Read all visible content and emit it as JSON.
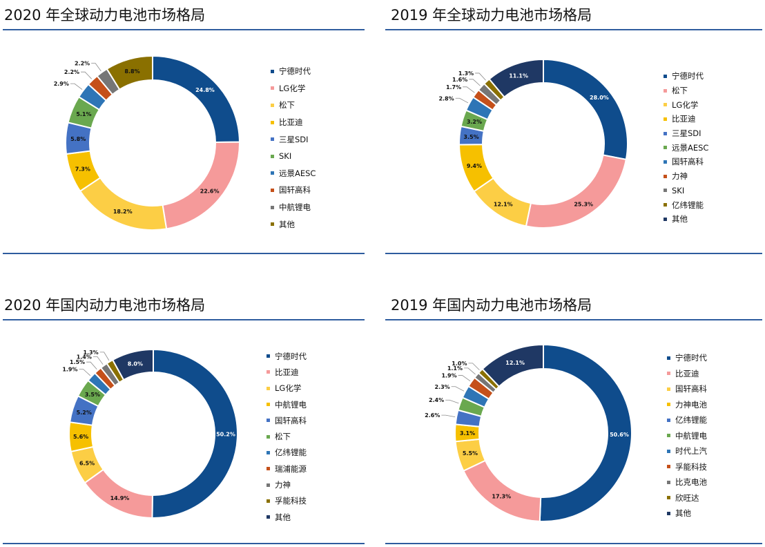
{
  "chart_data": [
    {
      "type": "pie",
      "title": "2020 年全球动力电池市场格局",
      "series": [
        {
          "name": "宁德时代",
          "value": 24.8,
          "label": "24.8%",
          "color": "#0f4c8c"
        },
        {
          "name": "LG化学",
          "value": 22.6,
          "label": "22.6%",
          "color": "#f59a9a"
        },
        {
          "name": "松下",
          "value": 18.2,
          "label": "18.2%",
          "color": "#fcce45"
        },
        {
          "name": "比亚迪",
          "value": 7.3,
          "label": "7.3%",
          "color": "#f6c000"
        },
        {
          "name": "三星SDI",
          "value": 5.8,
          "label": "5.8%",
          "color": "#4472c4"
        },
        {
          "name": "SKI",
          "value": 5.1,
          "label": "5.1%",
          "color": "#6aa84f"
        },
        {
          "name": "远景AESC",
          "value": 2.9,
          "label": "2.9%",
          "color": "#2e75b6"
        },
        {
          "name": "国轩高科",
          "value": 2.2,
          "label": "2.2%",
          "color": "#c5501a"
        },
        {
          "name": "中航锂电",
          "value": 2.2,
          "label": "2.2%",
          "color": "#767676"
        },
        {
          "name": "其他",
          "value": 8.8,
          "label": "8.8%",
          "color": "#8a7000"
        }
      ]
    },
    {
      "type": "pie",
      "title": "2019 年全球动力电池市场格局",
      "series": [
        {
          "name": "宁德时代",
          "value": 28.0,
          "label": "28.0%",
          "color": "#0f4c8c"
        },
        {
          "name": "松下",
          "value": 25.3,
          "label": "25.3%",
          "color": "#f59a9a"
        },
        {
          "name": "LG化学",
          "value": 12.1,
          "label": "12.1%",
          "color": "#fcce45"
        },
        {
          "name": "比亚迪",
          "value": 9.4,
          "label": "9.4%",
          "color": "#f6c000"
        },
        {
          "name": "三星SDI",
          "value": 3.5,
          "label": "3.5%",
          "color": "#4472c4"
        },
        {
          "name": "远景AESC",
          "value": 3.2,
          "label": "3.2%",
          "color": "#6aa84f"
        },
        {
          "name": "国轩高科",
          "value": 2.8,
          "label": "2.8%",
          "color": "#2e75b6"
        },
        {
          "name": "力神",
          "value": 1.7,
          "label": "1.7%",
          "color": "#c5501a"
        },
        {
          "name": "SKI",
          "value": 1.6,
          "label": "1.6%",
          "color": "#767676"
        },
        {
          "name": "亿纬锂能",
          "value": 1.3,
          "label": "1.3%",
          "color": "#8a7000"
        },
        {
          "name": "其他",
          "value": 11.1,
          "label": "11.1%",
          "color": "#1f3864"
        }
      ]
    },
    {
      "type": "pie",
      "title": "2020 年国内动力电池市场格局",
      "series": [
        {
          "name": "宁德时代",
          "value": 50.2,
          "label": "50.2%",
          "color": "#0f4c8c"
        },
        {
          "name": "比亚迪",
          "value": 14.9,
          "label": "14.9%",
          "color": "#f59a9a"
        },
        {
          "name": "LG化学",
          "value": 6.5,
          "label": "6.5%",
          "color": "#fcce45"
        },
        {
          "name": "中航锂电",
          "value": 5.6,
          "label": "5.6%",
          "color": "#f6c000"
        },
        {
          "name": "国轩高科",
          "value": 5.2,
          "label": "5.2%",
          "color": "#4472c4"
        },
        {
          "name": "松下",
          "value": 3.5,
          "label": "3.5%",
          "color": "#6aa84f"
        },
        {
          "name": "亿纬锂能",
          "value": 1.9,
          "label": "1.9%",
          "color": "#2e75b6"
        },
        {
          "name": "瑞浦能源",
          "value": 1.5,
          "label": "1.5%",
          "color": "#c5501a"
        },
        {
          "name": "力神",
          "value": 1.4,
          "label": "1.4%",
          "color": "#767676"
        },
        {
          "name": "孚能科技",
          "value": 1.3,
          "label": "1.3%",
          "color": "#8a7000"
        },
        {
          "name": "其他",
          "value": 8.0,
          "label": "8.0%",
          "color": "#1f3864"
        }
      ]
    },
    {
      "type": "pie",
      "title": "2019 年国内动力电池市场格局",
      "series": [
        {
          "name": "宁德时代",
          "value": 50.6,
          "label": "50.6%",
          "color": "#0f4c8c"
        },
        {
          "name": "比亚迪",
          "value": 17.3,
          "label": "17.3%",
          "color": "#f59a9a"
        },
        {
          "name": "国轩高科",
          "value": 5.5,
          "label": "5.5%",
          "color": "#fcce45"
        },
        {
          "name": "力神电池",
          "value": 3.1,
          "label": "3.1%",
          "color": "#f6c000"
        },
        {
          "name": "亿纬锂能",
          "value": 2.6,
          "label": "2.6%",
          "color": "#4472c4"
        },
        {
          "name": "中航锂电",
          "value": 2.4,
          "label": "2.4%",
          "color": "#6aa84f"
        },
        {
          "name": "时代上汽",
          "value": 2.3,
          "label": "2.3%",
          "color": "#2e75b6"
        },
        {
          "name": "孚能科技",
          "value": 1.9,
          "label": "1.9%",
          "color": "#c5501a"
        },
        {
          "name": "比克电池",
          "value": 1.1,
          "label": "1.1%",
          "color": "#767676"
        },
        {
          "name": "欣旺达",
          "value": 1.0,
          "label": "1.0%",
          "color": "#8a7000"
        },
        {
          "name": "其他",
          "value": 12.1,
          "label": "12.1%",
          "color": "#1f3864"
        }
      ]
    }
  ]
}
